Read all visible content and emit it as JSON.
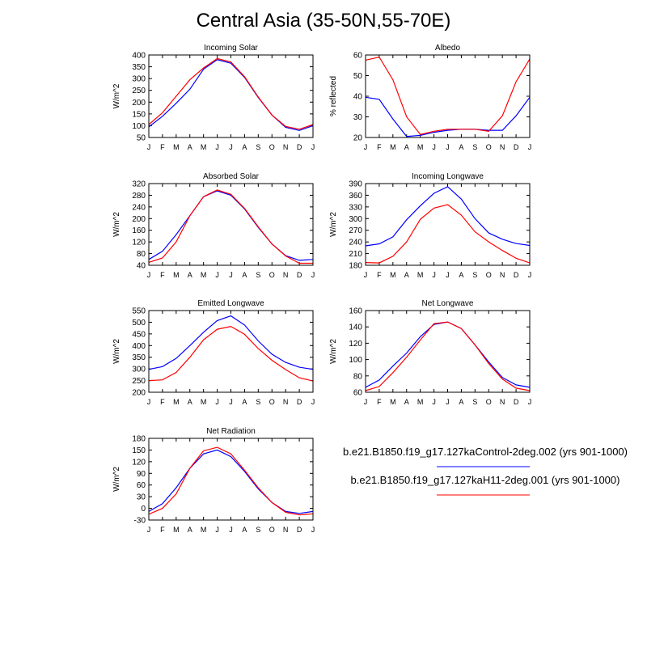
{
  "title": "Central Asia (35-50N,55-70E)",
  "legend": [
    {
      "label": "b.e21.B1850.f19_g17.127kaControl-2deg.002 (yrs 901-1000)",
      "color": "#0000ff"
    },
    {
      "label": "b.e21.B1850.f19_g17.127kaH11-2deg.001 (yrs 901-1000)",
      "color": "#ff0000"
    }
  ],
  "chart_data": [
    {
      "type": "line",
      "title": "Incoming Solar",
      "ylabel": "W/m^2",
      "categories": [
        "J",
        "F",
        "M",
        "A",
        "M",
        "J",
        "J",
        "A",
        "S",
        "O",
        "N",
        "D",
        "J"
      ],
      "ylim": [
        50,
        400
      ],
      "yticks": [
        50,
        100,
        150,
        200,
        250,
        300,
        350,
        400
      ],
      "series": [
        {
          "values": [
            95,
            140,
            195,
            255,
            340,
            380,
            365,
            305,
            220,
            145,
            93,
            80,
            100
          ]
        },
        {
          "values": [
            105,
            155,
            225,
            295,
            345,
            385,
            370,
            308,
            222,
            145,
            97,
            85,
            105
          ]
        }
      ]
    },
    {
      "type": "line",
      "title": "Albedo",
      "ylabel": "% reflected",
      "categories": [
        "J",
        "F",
        "M",
        "A",
        "M",
        "J",
        "J",
        "A",
        "S",
        "O",
        "N",
        "D",
        "J"
      ],
      "ylim": [
        20,
        60
      ],
      "yticks": [
        20,
        30,
        40,
        50,
        60
      ],
      "series": [
        {
          "values": [
            39.5,
            38.5,
            29,
            20.5,
            21,
            22.5,
            23.5,
            24,
            24,
            23.5,
            23.5,
            30.5,
            39.5
          ]
        },
        {
          "values": [
            57.5,
            59,
            48,
            30,
            21.5,
            23,
            24,
            24,
            24,
            23,
            30.5,
            47,
            58
          ]
        }
      ]
    },
    {
      "type": "line",
      "title": "Absorbed Solar",
      "ylabel": "W/m^2",
      "categories": [
        "J",
        "F",
        "M",
        "A",
        "M",
        "J",
        "J",
        "A",
        "S",
        "O",
        "N",
        "D",
        "J"
      ],
      "ylim": [
        40,
        320
      ],
      "yticks": [
        40,
        80,
        120,
        160,
        200,
        240,
        280,
        320
      ],
      "series": [
        {
          "values": [
            60,
            88,
            145,
            210,
            275,
            295,
            280,
            233,
            170,
            113,
            73,
            57,
            60
          ]
        },
        {
          "values": [
            50,
            65,
            120,
            210,
            275,
            298,
            283,
            235,
            172,
            113,
            72,
            47,
            47
          ]
        }
      ]
    },
    {
      "type": "line",
      "title": "Incoming Longwave",
      "ylabel": "W/m^2",
      "categories": [
        "J",
        "F",
        "M",
        "A",
        "M",
        "J",
        "J",
        "A",
        "S",
        "O",
        "N",
        "D",
        "J"
      ],
      "ylim": [
        180,
        390
      ],
      "yticks": [
        180,
        210,
        240,
        270,
        300,
        330,
        360,
        390
      ],
      "series": [
        {
          "values": [
            230,
            235,
            253,
            297,
            333,
            365,
            382,
            350,
            300,
            263,
            247,
            236,
            231
          ]
        },
        {
          "values": [
            187,
            186,
            203,
            240,
            298,
            327,
            336,
            309,
            266,
            240,
            218,
            198,
            186
          ]
        }
      ]
    },
    {
      "type": "line",
      "title": "Emitted Longwave",
      "ylabel": "W/m^2",
      "categories": [
        "J",
        "F",
        "M",
        "A",
        "M",
        "J",
        "J",
        "A",
        "S",
        "O",
        "N",
        "D",
        "J"
      ],
      "ylim": [
        200,
        550
      ],
      "yticks": [
        200,
        250,
        300,
        350,
        400,
        450,
        500,
        550
      ],
      "series": [
        {
          "values": [
            298,
            310,
            345,
            400,
            457,
            507,
            527,
            488,
            420,
            363,
            328,
            307,
            298
          ]
        },
        {
          "values": [
            250,
            253,
            285,
            350,
            425,
            470,
            482,
            448,
            387,
            337,
            297,
            262,
            248
          ]
        }
      ]
    },
    {
      "type": "line",
      "title": "Net Longwave",
      "ylabel": "W/m^2",
      "categories": [
        "J",
        "F",
        "M",
        "A",
        "M",
        "J",
        "J",
        "A",
        "S",
        "O",
        "N",
        "D",
        "J"
      ],
      "ylim": [
        60,
        160
      ],
      "yticks": [
        60,
        80,
        100,
        120,
        140,
        160
      ],
      "series": [
        {
          "values": [
            66,
            75,
            92,
            108,
            128,
            143,
            146,
            138,
            118,
            97,
            78,
            69,
            66
          ]
        },
        {
          "values": [
            62,
            67,
            84,
            103,
            124,
            144,
            146,
            138,
            118,
            95,
            76,
            65,
            62
          ]
        }
      ]
    },
    {
      "type": "line",
      "title": "Net Radiation",
      "ylabel": "W/m^2",
      "categories": [
        "J",
        "F",
        "M",
        "A",
        "M",
        "J",
        "J",
        "A",
        "S",
        "O",
        "N",
        "D",
        "J"
      ],
      "ylim": [
        -30,
        180
      ],
      "yticks": [
        -30,
        0,
        30,
        60,
        90,
        120,
        150,
        180
      ],
      "series": [
        {
          "values": [
            -8,
            12,
            53,
            103,
            140,
            150,
            133,
            95,
            50,
            15,
            -8,
            -13,
            -8
          ]
        },
        {
          "values": [
            -15,
            0,
            37,
            103,
            148,
            157,
            140,
            98,
            53,
            15,
            -10,
            -17,
            -14
          ]
        }
      ]
    }
  ]
}
